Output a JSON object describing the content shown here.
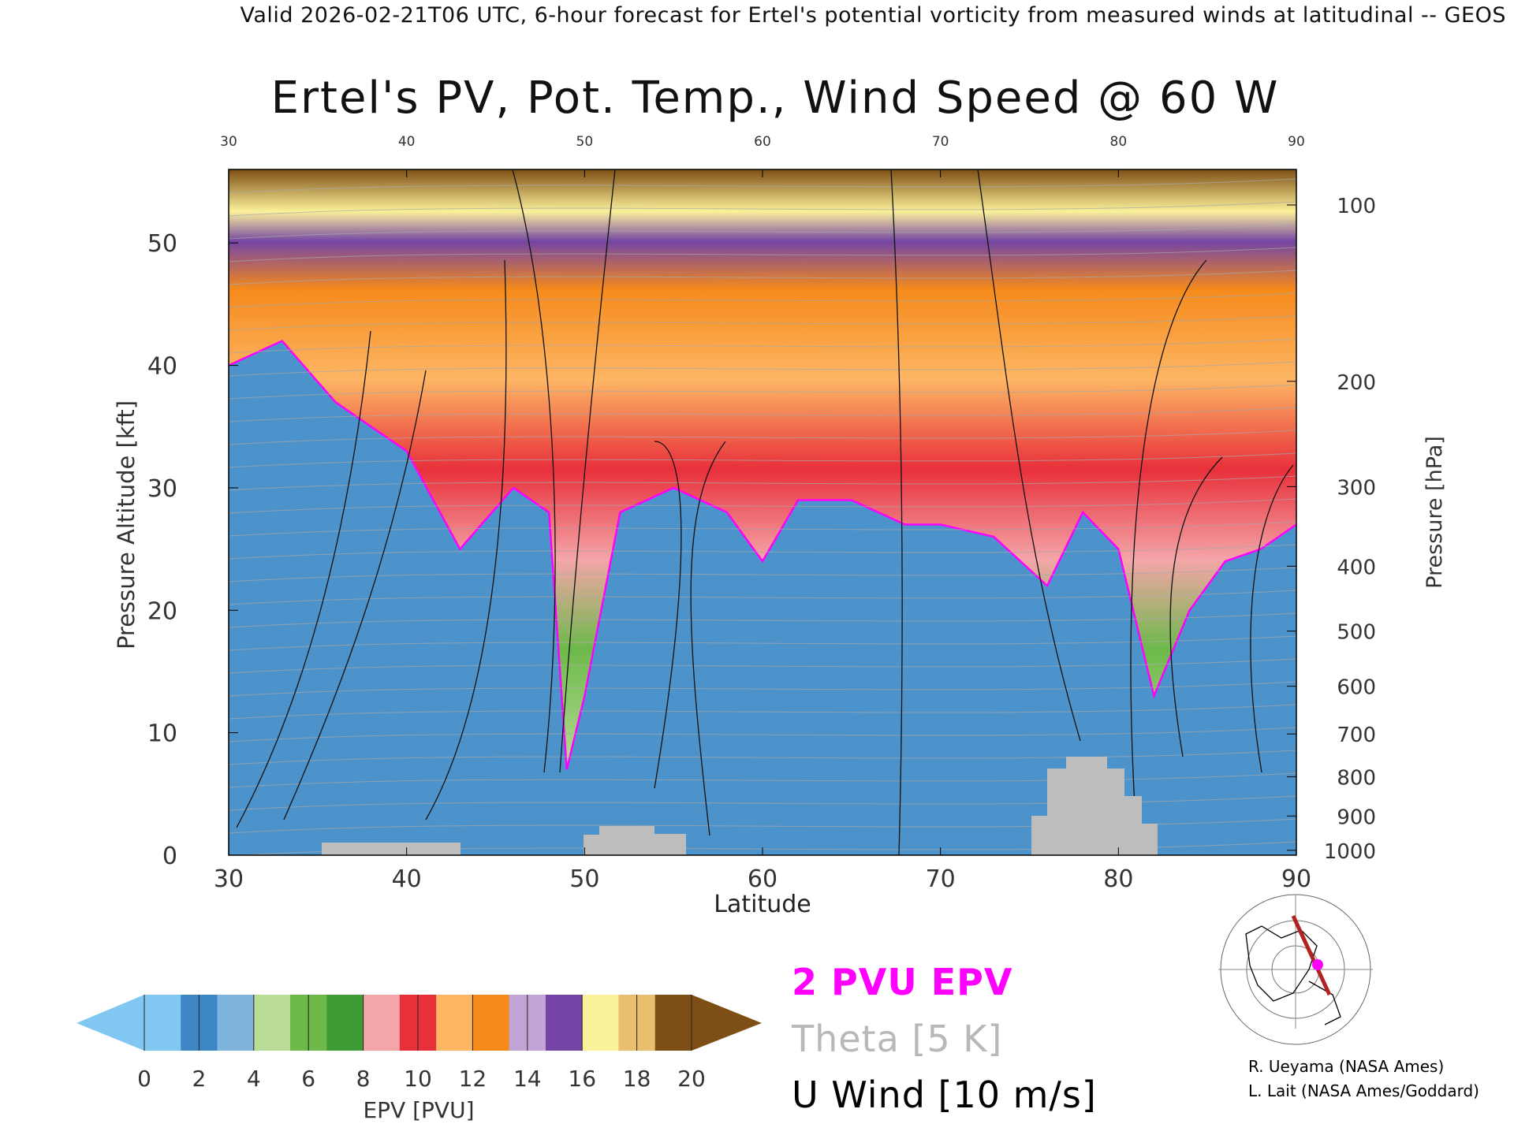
{
  "header": {
    "text": "Valid 2026-02-21T06 UTC, 6-hour forecast for Ertel's potential vorticity from measured winds at latitudinal -- GEOS"
  },
  "chart_data": {
    "type": "heatmap",
    "title": "Ertel's PV, Pot. Temp., Wind Speed @ 60 W",
    "xlabel": "Latitude",
    "ylabel": "Pressure Altitude [kft]",
    "y2label": "Pressure [hPa]",
    "xlim": [
      30,
      90
    ],
    "ylim": [
      0,
      56
    ],
    "x_ticks": [
      "30",
      "40",
      "50",
      "60",
      "70",
      "80",
      "90"
    ],
    "x_ticks_values": [
      30,
      40,
      50,
      60,
      70,
      80,
      90
    ],
    "y_ticks": [
      "0",
      "10",
      "20",
      "30",
      "40",
      "50"
    ],
    "y_ticks_values": [
      0,
      10,
      20,
      30,
      40,
      50
    ],
    "pressure_ticks": [
      "100",
      "200",
      "300",
      "400",
      "500",
      "600",
      "700",
      "800",
      "900",
      "1000"
    ],
    "pressure_ticks_kft": [
      53.1,
      38.7,
      30.1,
      23.6,
      18.3,
      13.8,
      9.9,
      6.4,
      3.2,
      0.4
    ],
    "epv_band_tops_kft": [
      [
        30,
        40
      ],
      [
        33,
        42
      ],
      [
        36,
        37
      ],
      [
        40,
        33
      ],
      [
        43,
        25
      ],
      [
        46,
        30
      ],
      [
        48,
        28
      ],
      [
        49,
        7
      ],
      [
        50,
        13
      ],
      [
        52,
        28
      ],
      [
        55,
        30
      ],
      [
        58,
        28
      ],
      [
        60,
        24
      ],
      [
        62,
        29
      ],
      [
        65,
        29
      ],
      [
        68,
        27
      ],
      [
        70,
        27
      ],
      [
        73,
        26
      ],
      [
        76,
        22
      ],
      [
        78,
        28
      ],
      [
        80,
        25
      ],
      [
        82,
        13
      ],
      [
        84,
        20
      ],
      [
        86,
        24
      ],
      [
        88,
        25
      ],
      [
        90,
        27
      ]
    ],
    "colorbar": {
      "label": "EPV [PVU]",
      "ticks": [
        "0",
        "2",
        "4",
        "6",
        "8",
        "10",
        "12",
        "14",
        "16",
        "18",
        "20"
      ],
      "colors": [
        "#80c8f2",
        "#3d87c4",
        "#7fb4de",
        "#b9dd95",
        "#6cb94a",
        "#3f9b35",
        "#f4a5a8",
        "#e8303b",
        "#fdb664",
        "#f58a1b",
        "#c3a4d6",
        "#7445a4",
        "#fbf19a",
        "#e9be6d",
        "#7e4f14"
      ]
    },
    "legend": {
      "epv_label": "2 PVU EPV",
      "epv_color": "#ff00ff",
      "theta_label": "Theta [5 K]",
      "theta_color": "#b8b8b8",
      "wind_label": "U Wind [10 m/s]",
      "wind_color": "#000000"
    },
    "grid": false
  },
  "credits": {
    "line1": "R. Ueyama (NASA Ames)",
    "line2": "L. Lait (NASA Ames/Goddard)"
  }
}
